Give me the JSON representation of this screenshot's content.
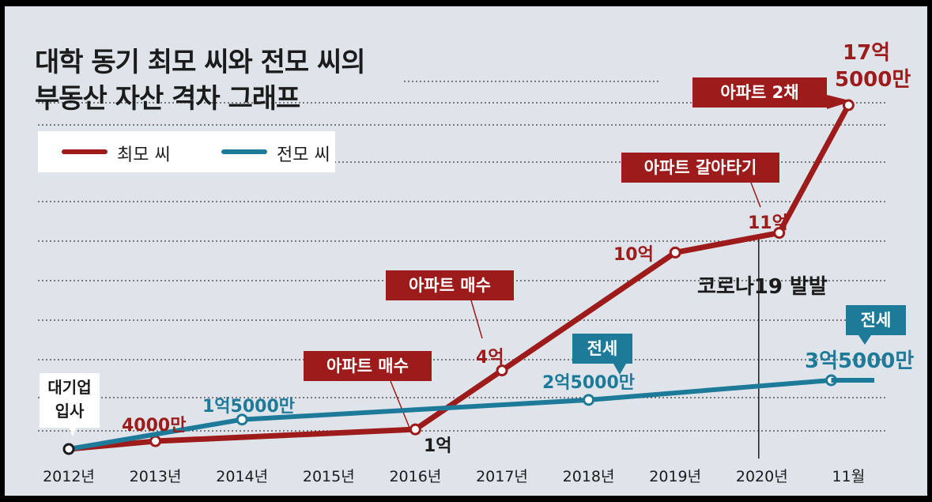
{
  "title_line1": "대학 동기 최모 씨와 전모 씨의",
  "title_line2": "부동산 자산 격차 그래프",
  "legend": {
    "series1": "최모 씨",
    "series2": "전모 씨"
  },
  "colors": {
    "red": "#9e1b1b",
    "blue": "#1e7a99",
    "background": "#dfe4ea",
    "grid": "#3a3a3a"
  },
  "annotations": {
    "hire": "대기업 입사",
    "buy1": "아파트 매수",
    "buy2": "아파트 매수",
    "switch": "아파트 갈아타기",
    "two_apts": "아파트 2채",
    "jeonse1": "전세",
    "jeonse2": "전세",
    "covid": "코로나19 발발"
  },
  "value_labels": {
    "r2013": "4000만",
    "r2016": "1억",
    "r2017": "4억",
    "r2019": "10억",
    "r2020": "11억",
    "r_end_1": "17억",
    "r_end_2": "5000만",
    "b2014": "1억5000만",
    "b2018": "2억5000만",
    "b_end": "3억5000만"
  },
  "chart_data": {
    "type": "line",
    "title": "대학 동기 최모 씨와 전모 씨의 부동산 자산 격차 그래프",
    "x": [
      "2012년",
      "2013년",
      "2014년",
      "2015년",
      "2016년",
      "2017년",
      "2018년",
      "2019년",
      "2020년",
      "11월"
    ],
    "xlabel": "",
    "ylabel": "",
    "ylim": [
      0,
      17.5
    ],
    "y_unit": "억원",
    "series": [
      {
        "name": "최모 씨",
        "color": "#9e1b1b",
        "points": [
          {
            "x": 0,
            "y": 0
          },
          {
            "x": 1,
            "y": 0.4
          },
          {
            "x": 4,
            "y": 1.0
          },
          {
            "x": 5,
            "y": 4.0
          },
          {
            "x": 7,
            "y": 10.0
          },
          {
            "x": 8.2,
            "y": 11.0
          },
          {
            "x": 9,
            "y": 17.5
          }
        ]
      },
      {
        "name": "전모 씨",
        "color": "#1e7a99",
        "points": [
          {
            "x": 0,
            "y": 0
          },
          {
            "x": 2,
            "y": 1.5
          },
          {
            "x": 6,
            "y": 2.5
          },
          {
            "x": 8.8,
            "y": 3.5
          }
        ]
      }
    ],
    "annotation_lines": [
      {
        "x": 8,
        "label": "코로나19 발발"
      }
    ],
    "grid": true
  }
}
